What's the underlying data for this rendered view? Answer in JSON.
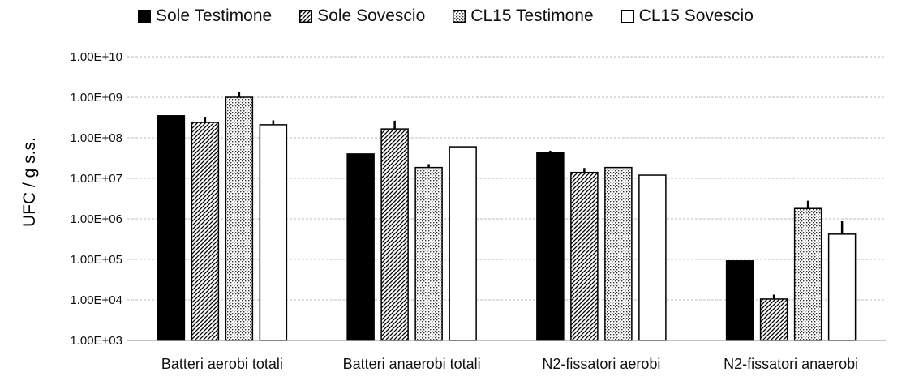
{
  "chart_data": {
    "type": "bar",
    "ylabel": "UFC / g  s.s.",
    "y_scale": "log",
    "ylim": [
      1000,
      10000000000
    ],
    "y_ticks": [
      "1.00E+03",
      "1.00E+04",
      "1.00E+05",
      "1.00E+06",
      "1.00E+07",
      "1.00E+08",
      "1.00E+09",
      "1.00E+10"
    ],
    "grid": true,
    "legend_position": "top",
    "categories": [
      "Batteri aerobi totali",
      "Batteri anaerobi totali",
      "N2-fissatori aerobi",
      "N2-fissatori anaerobi"
    ],
    "series": [
      {
        "name": "Sole Testimone",
        "fill": "solid-black",
        "values": [
          350000000,
          40000000,
          43000000,
          92000
        ],
        "errors": [
          0,
          0,
          5000000,
          0
        ]
      },
      {
        "name": "Sole Sovescio",
        "fill": "diagonal-hatch",
        "values": [
          240000000,
          165000000,
          14000000,
          10500
        ],
        "errors": [
          90000000,
          100000000,
          4000000,
          3000
        ]
      },
      {
        "name": "CL15 Testimone",
        "fill": "dotted",
        "values": [
          1000000000,
          18500000,
          18500000,
          1800000
        ],
        "errors": [
          350000000,
          4000000,
          0,
          1000000
        ]
      },
      {
        "name": "CL15 Sovescio",
        "fill": "white",
        "values": [
          210000000,
          60000000,
          12000000,
          420000
        ],
        "errors": [
          60000000,
          0,
          0,
          450000
        ]
      }
    ]
  }
}
